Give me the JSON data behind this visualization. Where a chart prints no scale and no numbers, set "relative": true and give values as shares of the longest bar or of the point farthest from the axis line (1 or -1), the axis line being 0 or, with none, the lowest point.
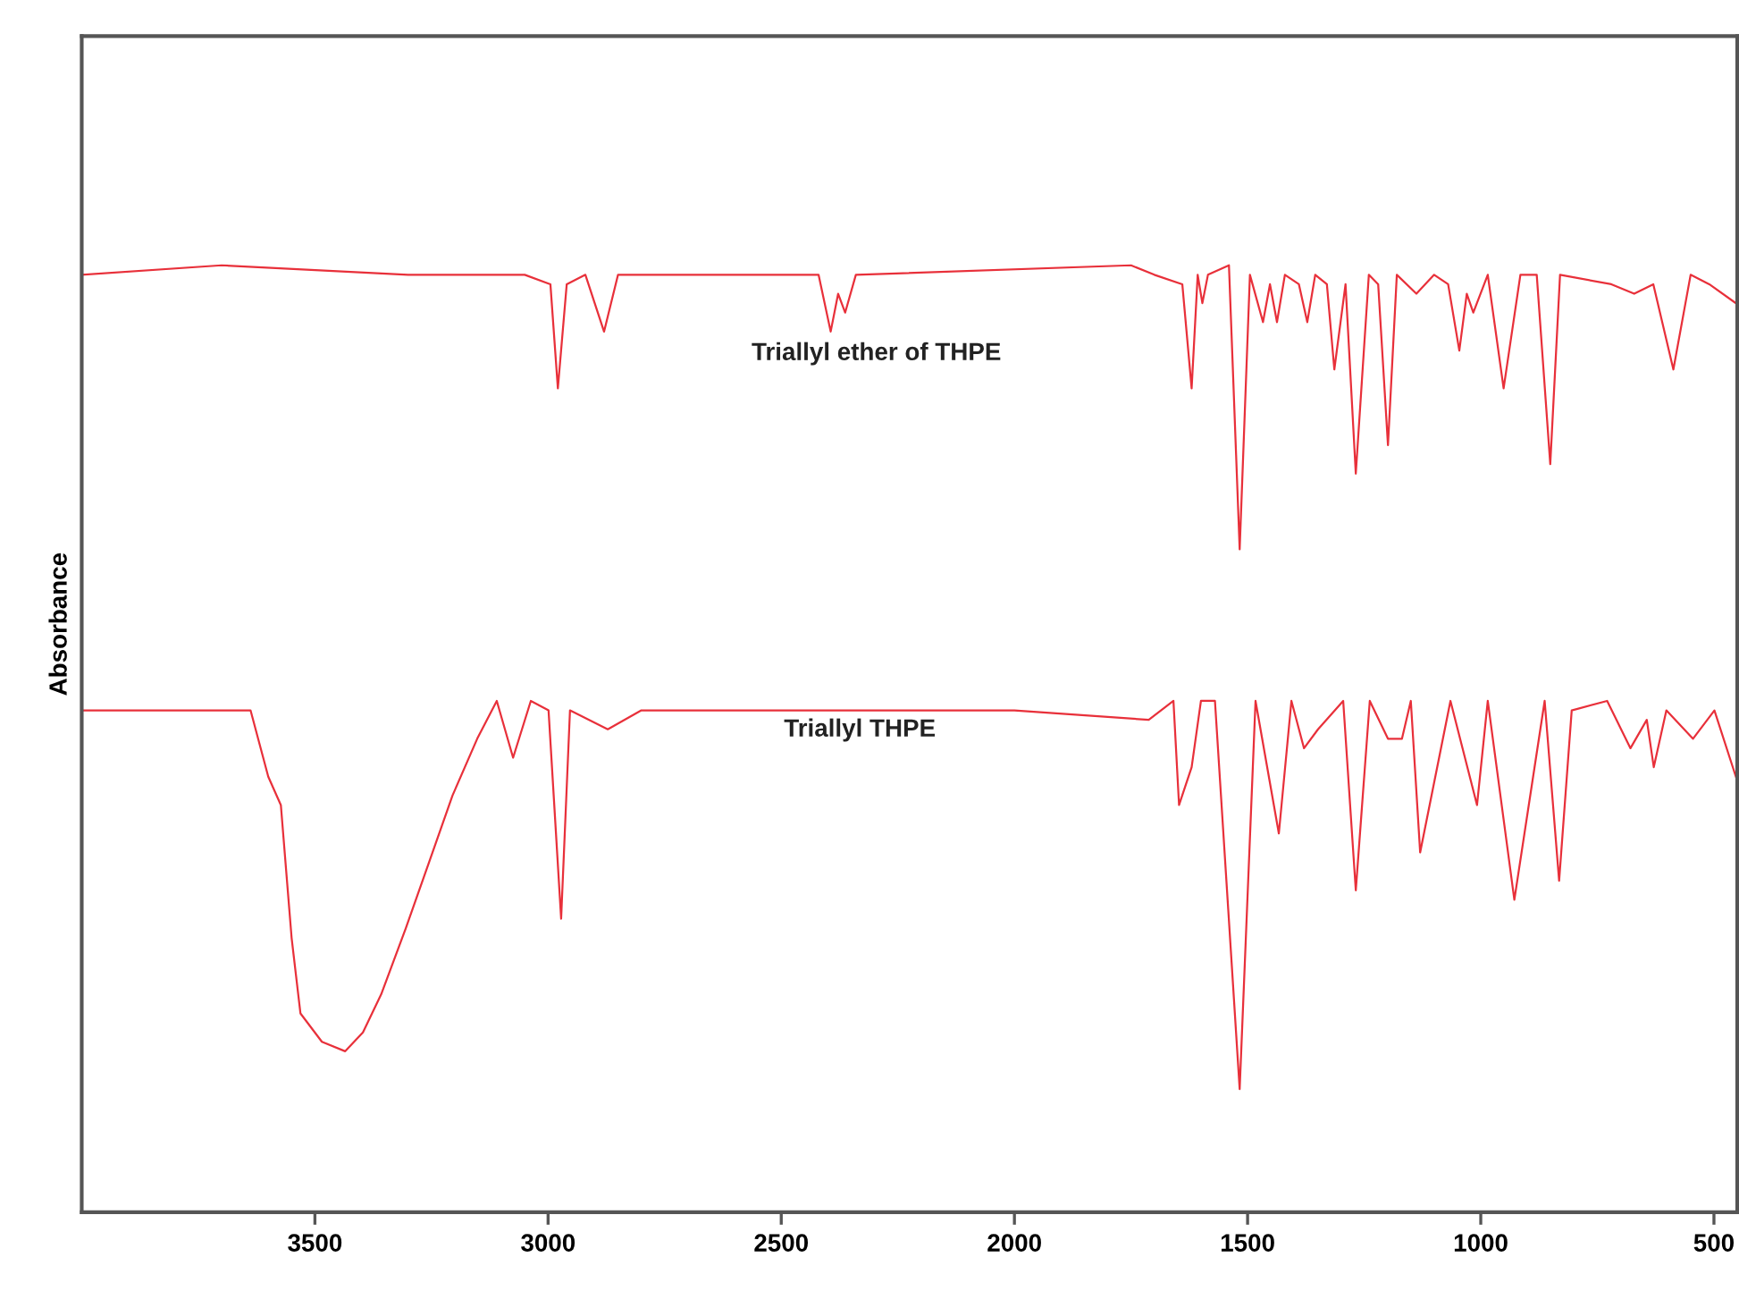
{
  "chart_data": {
    "type": "line",
    "relative": true,
    "ylabel": "Absorbance",
    "xlim": [
      4000,
      450
    ],
    "xticks": [
      3500,
      3000,
      2500,
      2000,
      1500,
      1000,
      500
    ],
    "grid": false,
    "legend": false,
    "marker": "none",
    "line_style": "solid",
    "series": [
      {
        "name": "Triallyl ether of THPE",
        "color": "#e8303a",
        "x": [
          4000,
          3700,
          3300,
          3050,
          2995,
          2979,
          2960,
          2920,
          2880,
          2850,
          2420,
          2394,
          2378,
          2363,
          2340,
          1750,
          1700,
          1640,
          1620,
          1607,
          1597,
          1585,
          1540,
          1517,
          1495,
          1467,
          1452,
          1437,
          1420,
          1390,
          1372,
          1355,
          1330,
          1314,
          1290,
          1268,
          1240,
          1220,
          1199,
          1180,
          1138,
          1100,
          1070,
          1046,
          1030,
          1016,
          985,
          951,
          915,
          880,
          851,
          830,
          720,
          671,
          630,
          587,
          550,
          510,
          453
        ],
        "values": [
          0.99,
          1.0,
          0.99,
          0.99,
          0.98,
          0.87,
          0.98,
          0.99,
          0.93,
          0.99,
          0.99,
          0.93,
          0.97,
          0.95,
          0.99,
          1.0,
          0.99,
          0.98,
          0.87,
          0.99,
          0.96,
          0.99,
          1.0,
          0.7,
          0.99,
          0.94,
          0.98,
          0.94,
          0.99,
          0.98,
          0.94,
          0.99,
          0.98,
          0.89,
          0.98,
          0.78,
          0.99,
          0.98,
          0.81,
          0.99,
          0.97,
          0.99,
          0.98,
          0.91,
          0.97,
          0.95,
          0.99,
          0.87,
          0.99,
          0.99,
          0.79,
          0.99,
          0.98,
          0.97,
          0.98,
          0.89,
          0.99,
          0.98,
          0.96
        ]
      },
      {
        "name": "Triallyl THPE",
        "color": "#e8303a",
        "x": [
          4000,
          3800,
          3638,
          3600,
          3573,
          3550,
          3531,
          3485,
          3435,
          3397,
          3358,
          3305,
          3255,
          3205,
          3152,
          3110,
          3075,
          3037,
          2999,
          2972,
          2953,
          2872,
          2800,
          2400,
          2000,
          1712,
          1659,
          1647,
          1620,
          1600,
          1570,
          1517,
          1483,
          1433,
          1406,
          1379,
          1349,
          1295,
          1268,
          1238,
          1199,
          1169,
          1150,
          1130,
          1065,
          1008,
          985,
          928,
          863,
          832,
          805,
          729,
          679,
          644,
          629,
          602,
          545,
          499,
          453
        ],
        "values": [
          0.53,
          0.53,
          0.53,
          0.46,
          0.43,
          0.29,
          0.21,
          0.18,
          0.17,
          0.19,
          0.23,
          0.3,
          0.37,
          0.44,
          0.5,
          0.54,
          0.48,
          0.54,
          0.53,
          0.31,
          0.53,
          0.51,
          0.53,
          0.53,
          0.53,
          0.52,
          0.54,
          0.43,
          0.47,
          0.54,
          0.54,
          0.13,
          0.54,
          0.4,
          0.54,
          0.49,
          0.51,
          0.54,
          0.34,
          0.54,
          0.5,
          0.5,
          0.54,
          0.38,
          0.54,
          0.43,
          0.54,
          0.33,
          0.54,
          0.35,
          0.53,
          0.54,
          0.49,
          0.52,
          0.47,
          0.53,
          0.5,
          0.53,
          0.46
        ]
      }
    ]
  }
}
